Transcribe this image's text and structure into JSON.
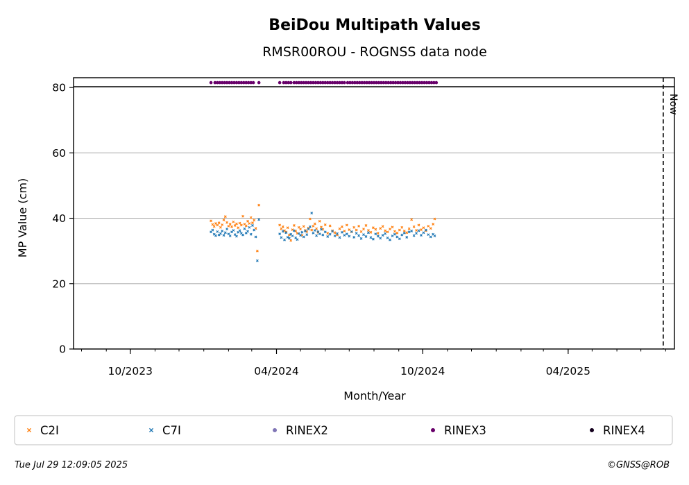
{
  "chart_data": {
    "type": "scatter",
    "title": "BeiDou Multipath Values",
    "subtitle": "RMSR00ROU - ROGNSS data node",
    "xlabel": "Month/Year",
    "ylabel": "MP Value (cm)",
    "x_tick_labels": [
      "10/2023",
      "04/2024",
      "10/2024",
      "04/2025"
    ],
    "x_tick_dates": [
      "2023-10-01",
      "2024-04-01",
      "2024-10-01",
      "2025-04-01"
    ],
    "xlim": [
      "2023-07-22",
      "2025-08-12"
    ],
    "ylim": [
      0,
      83
    ],
    "y_ticks": [
      0,
      20,
      40,
      60,
      80
    ],
    "grid": "horizontal",
    "now_date": "2025-07-29",
    "now_label": "Now",
    "series": [
      {
        "name": "C2I",
        "marker": "x",
        "color": "#ff7f0e",
        "points": [
          [
            "2024-01-10",
            39.2
          ],
          [
            "2024-01-12",
            38.1
          ],
          [
            "2024-01-14",
            37.5
          ],
          [
            "2024-01-16",
            38.4
          ],
          [
            "2024-01-18",
            37.9
          ],
          [
            "2024-01-20",
            38.6
          ],
          [
            "2024-01-22",
            37.2
          ],
          [
            "2024-01-24",
            38.0
          ],
          [
            "2024-01-26",
            39.5
          ],
          [
            "2024-01-28",
            40.5
          ],
          [
            "2024-01-30",
            38.7
          ],
          [
            "2024-02-01",
            37.6
          ],
          [
            "2024-02-03",
            38.2
          ],
          [
            "2024-02-05",
            37.4
          ],
          [
            "2024-02-07",
            38.9
          ],
          [
            "2024-02-09",
            37.8
          ],
          [
            "2024-02-11",
            38.3
          ],
          [
            "2024-02-13",
            37.1
          ],
          [
            "2024-02-15",
            38.5
          ],
          [
            "2024-02-17",
            37.9
          ],
          [
            "2024-02-19",
            40.6
          ],
          [
            "2024-02-21",
            38.2
          ],
          [
            "2024-02-23",
            37.7
          ],
          [
            "2024-02-25",
            39.1
          ],
          [
            "2024-02-27",
            38.4
          ],
          [
            "2024-02-29",
            40.2
          ],
          [
            "2024-03-02",
            38.6
          ],
          [
            "2024-03-04",
            39.4
          ],
          [
            "2024-03-06",
            36.9
          ],
          [
            "2024-03-08",
            30.0
          ],
          [
            "2024-03-10",
            44.0
          ],
          [
            "2024-04-05",
            37.9
          ],
          [
            "2024-04-07",
            36.8
          ],
          [
            "2024-04-09",
            37.4
          ],
          [
            "2024-04-11",
            36.2
          ],
          [
            "2024-04-13",
            35.8
          ],
          [
            "2024-04-15",
            37.1
          ],
          [
            "2024-04-17",
            34.9
          ],
          [
            "2024-04-19",
            33.2
          ],
          [
            "2024-04-21",
            36.5
          ],
          [
            "2024-04-23",
            37.8
          ],
          [
            "2024-04-25",
            36.1
          ],
          [
            "2024-04-27",
            35.4
          ],
          [
            "2024-04-29",
            37.2
          ],
          [
            "2024-05-01",
            36.7
          ],
          [
            "2024-05-03",
            34.8
          ],
          [
            "2024-05-05",
            37.5
          ],
          [
            "2024-05-07",
            36.3
          ],
          [
            "2024-05-09",
            35.9
          ],
          [
            "2024-05-11",
            37.0
          ],
          [
            "2024-05-13",
            39.8
          ],
          [
            "2024-05-15",
            36.4
          ],
          [
            "2024-05-17",
            37.6
          ],
          [
            "2024-05-19",
            38.3
          ],
          [
            "2024-05-21",
            36.8
          ],
          [
            "2024-05-23",
            35.7
          ],
          [
            "2024-05-25",
            39.1
          ],
          [
            "2024-05-27",
            37.3
          ],
          [
            "2024-05-29",
            36.6
          ],
          [
            "2024-06-01",
            38.0
          ],
          [
            "2024-06-04",
            35.4
          ],
          [
            "2024-06-07",
            37.7
          ],
          [
            "2024-06-10",
            36.2
          ],
          [
            "2024-06-13",
            35.6
          ],
          [
            "2024-06-16",
            34.9
          ],
          [
            "2024-06-19",
            36.8
          ],
          [
            "2024-06-22",
            37.4
          ],
          [
            "2024-06-25",
            36.1
          ],
          [
            "2024-06-28",
            37.9
          ],
          [
            "2024-07-01",
            36.5
          ],
          [
            "2024-07-04",
            35.8
          ],
          [
            "2024-07-07",
            37.2
          ],
          [
            "2024-07-10",
            36.4
          ],
          [
            "2024-07-13",
            37.6
          ],
          [
            "2024-07-16",
            35.9
          ],
          [
            "2024-07-19",
            36.7
          ],
          [
            "2024-07-22",
            37.8
          ],
          [
            "2024-07-25",
            36.3
          ],
          [
            "2024-07-28",
            35.7
          ],
          [
            "2024-07-31",
            37.1
          ],
          [
            "2024-08-03",
            36.6
          ],
          [
            "2024-08-06",
            35.4
          ],
          [
            "2024-08-09",
            36.9
          ],
          [
            "2024-08-12",
            37.5
          ],
          [
            "2024-08-15",
            36.2
          ],
          [
            "2024-08-18",
            35.8
          ],
          [
            "2024-08-21",
            36.7
          ],
          [
            "2024-08-24",
            37.3
          ],
          [
            "2024-08-27",
            36.0
          ],
          [
            "2024-08-30",
            35.5
          ],
          [
            "2024-09-02",
            36.4
          ],
          [
            "2024-09-05",
            37.2
          ],
          [
            "2024-09-08",
            36.1
          ],
          [
            "2024-09-11",
            35.6
          ],
          [
            "2024-09-14",
            36.8
          ],
          [
            "2024-09-17",
            39.6
          ],
          [
            "2024-09-20",
            37.4
          ],
          [
            "2024-09-23",
            36.3
          ],
          [
            "2024-09-26",
            37.9
          ],
          [
            "2024-09-29",
            36.5
          ],
          [
            "2024-10-02",
            37.1
          ],
          [
            "2024-10-05",
            36.2
          ],
          [
            "2024-10-08",
            37.6
          ],
          [
            "2024-10-11",
            36.9
          ],
          [
            "2024-10-14",
            38.2
          ],
          [
            "2024-10-16",
            39.8
          ]
        ]
      },
      {
        "name": "C7I",
        "marker": "x",
        "color": "#1f77b4",
        "points": [
          [
            "2024-01-10",
            35.8
          ],
          [
            "2024-01-12",
            36.4
          ],
          [
            "2024-01-14",
            35.1
          ],
          [
            "2024-01-16",
            34.7
          ],
          [
            "2024-01-18",
            35.9
          ],
          [
            "2024-01-20",
            34.9
          ],
          [
            "2024-01-22",
            35.3
          ],
          [
            "2024-01-24",
            36.1
          ],
          [
            "2024-01-26",
            34.8
          ],
          [
            "2024-01-28",
            35.6
          ],
          [
            "2024-01-30",
            36.7
          ],
          [
            "2024-02-01",
            35.2
          ],
          [
            "2024-02-03",
            34.6
          ],
          [
            "2024-02-05",
            35.8
          ],
          [
            "2024-02-07",
            36.3
          ],
          [
            "2024-02-09",
            35.0
          ],
          [
            "2024-02-11",
            34.5
          ],
          [
            "2024-02-13",
            35.7
          ],
          [
            "2024-02-15",
            36.2
          ],
          [
            "2024-02-17",
            35.4
          ],
          [
            "2024-02-19",
            34.9
          ],
          [
            "2024-02-21",
            36.8
          ],
          [
            "2024-02-23",
            35.5
          ],
          [
            "2024-02-25",
            36.0
          ],
          [
            "2024-02-27",
            37.2
          ],
          [
            "2024-02-29",
            35.1
          ],
          [
            "2024-03-02",
            37.8
          ],
          [
            "2024-03-04",
            36.4
          ],
          [
            "2024-03-06",
            34.3
          ],
          [
            "2024-03-08",
            27.0
          ],
          [
            "2024-03-10",
            39.6
          ],
          [
            "2024-04-05",
            35.2
          ],
          [
            "2024-04-07",
            34.1
          ],
          [
            "2024-04-09",
            36.0
          ],
          [
            "2024-04-11",
            33.4
          ],
          [
            "2024-04-13",
            35.6
          ],
          [
            "2024-04-15",
            34.2
          ],
          [
            "2024-04-17",
            33.9
          ],
          [
            "2024-04-19",
            35.1
          ],
          [
            "2024-04-21",
            34.6
          ],
          [
            "2024-04-23",
            36.2
          ],
          [
            "2024-04-25",
            34.0
          ],
          [
            "2024-04-27",
            33.5
          ],
          [
            "2024-04-29",
            35.3
          ],
          [
            "2024-05-01",
            34.8
          ],
          [
            "2024-05-03",
            35.7
          ],
          [
            "2024-05-05",
            34.3
          ],
          [
            "2024-05-07",
            36.1
          ],
          [
            "2024-05-09",
            35.0
          ],
          [
            "2024-05-11",
            36.7
          ],
          [
            "2024-05-13",
            37.4
          ],
          [
            "2024-05-15",
            41.6
          ],
          [
            "2024-05-17",
            35.5
          ],
          [
            "2024-05-19",
            36.3
          ],
          [
            "2024-05-21",
            34.7
          ],
          [
            "2024-05-23",
            35.9
          ],
          [
            "2024-05-25",
            35.2
          ],
          [
            "2024-05-27",
            36.6
          ],
          [
            "2024-05-29",
            34.9
          ],
          [
            "2024-06-01",
            35.8
          ],
          [
            "2024-06-04",
            34.4
          ],
          [
            "2024-06-07",
            35.1
          ],
          [
            "2024-06-10",
            36.0
          ],
          [
            "2024-06-13",
            34.6
          ],
          [
            "2024-06-16",
            35.3
          ],
          [
            "2024-06-19",
            34.1
          ],
          [
            "2024-06-22",
            35.7
          ],
          [
            "2024-06-25",
            34.8
          ],
          [
            "2024-06-28",
            35.2
          ],
          [
            "2024-07-01",
            34.5
          ],
          [
            "2024-07-04",
            35.9
          ],
          [
            "2024-07-07",
            34.2
          ],
          [
            "2024-07-10",
            35.4
          ],
          [
            "2024-07-13",
            34.7
          ],
          [
            "2024-07-16",
            33.8
          ],
          [
            "2024-07-19",
            35.0
          ],
          [
            "2024-07-22",
            34.4
          ],
          [
            "2024-07-25",
            35.6
          ],
          [
            "2024-07-28",
            34.1
          ],
          [
            "2024-07-31",
            33.6
          ],
          [
            "2024-08-03",
            35.2
          ],
          [
            "2024-08-06",
            34.5
          ],
          [
            "2024-08-09",
            33.9
          ],
          [
            "2024-08-12",
            34.8
          ],
          [
            "2024-08-15",
            35.3
          ],
          [
            "2024-08-18",
            34.0
          ],
          [
            "2024-08-21",
            33.4
          ],
          [
            "2024-08-24",
            34.6
          ],
          [
            "2024-08-27",
            35.1
          ],
          [
            "2024-08-30",
            34.3
          ],
          [
            "2024-09-02",
            33.7
          ],
          [
            "2024-09-05",
            34.9
          ],
          [
            "2024-09-08",
            35.5
          ],
          [
            "2024-09-11",
            34.2
          ],
          [
            "2024-09-14",
            35.8
          ],
          [
            "2024-09-17",
            36.1
          ],
          [
            "2024-09-20",
            34.7
          ],
          [
            "2024-09-23",
            35.4
          ],
          [
            "2024-09-26",
            36.2
          ],
          [
            "2024-09-29",
            34.8
          ],
          [
            "2024-10-02",
            35.6
          ],
          [
            "2024-10-05",
            36.4
          ],
          [
            "2024-10-08",
            35.0
          ],
          [
            "2024-10-11",
            34.3
          ],
          [
            "2024-10-14",
            35.1
          ],
          [
            "2024-10-16",
            34.6
          ]
        ]
      },
      {
        "name": "RINEX2",
        "marker": "dot",
        "color": "#8076b6",
        "dates": []
      },
      {
        "name": "RINEX3",
        "marker": "dot",
        "color": "#68006a",
        "value": 81.5,
        "ranges": [
          [
            "2024-01-10",
            "2024-01-12"
          ],
          [
            "2024-01-15",
            "2024-02-05"
          ],
          [
            "2024-02-08",
            "2024-03-05"
          ],
          [
            "2024-03-10",
            "2024-03-10"
          ],
          [
            "2024-04-05",
            "2024-04-07"
          ],
          [
            "2024-04-10",
            "2024-04-20"
          ],
          [
            "2024-04-23",
            "2024-05-20"
          ],
          [
            "2024-05-23",
            "2024-06-10"
          ],
          [
            "2024-06-13",
            "2024-06-26"
          ],
          [
            "2024-06-29",
            "2024-10-18"
          ]
        ]
      },
      {
        "name": "RINEX4",
        "marker": "dot",
        "color": "#14001e",
        "dates": []
      }
    ]
  },
  "footer": {
    "timestamp": "Tue Jul 29 12:09:05 2025",
    "credit": "©GNSS@ROB"
  }
}
